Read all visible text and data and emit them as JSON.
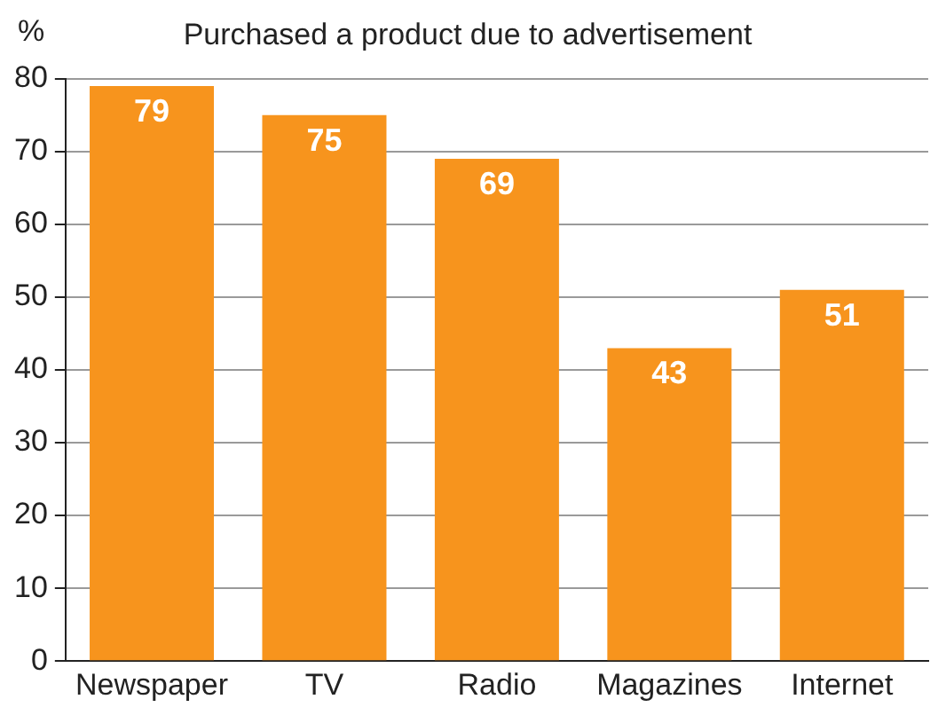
{
  "chart_data": {
    "type": "bar",
    "title": "Purchased a product due to advertisement",
    "ylabel": "%",
    "categories": [
      "Newspaper",
      "TV",
      "Radio",
      "Magazines",
      "Internet"
    ],
    "values": [
      79,
      75,
      69,
      43,
      51
    ],
    "color": "#f7941d",
    "ylim": [
      0,
      80
    ],
    "yticks": [
      0,
      10,
      20,
      30,
      40,
      50,
      60,
      70,
      80
    ],
    "grid": "y",
    "data_labels": true
  }
}
